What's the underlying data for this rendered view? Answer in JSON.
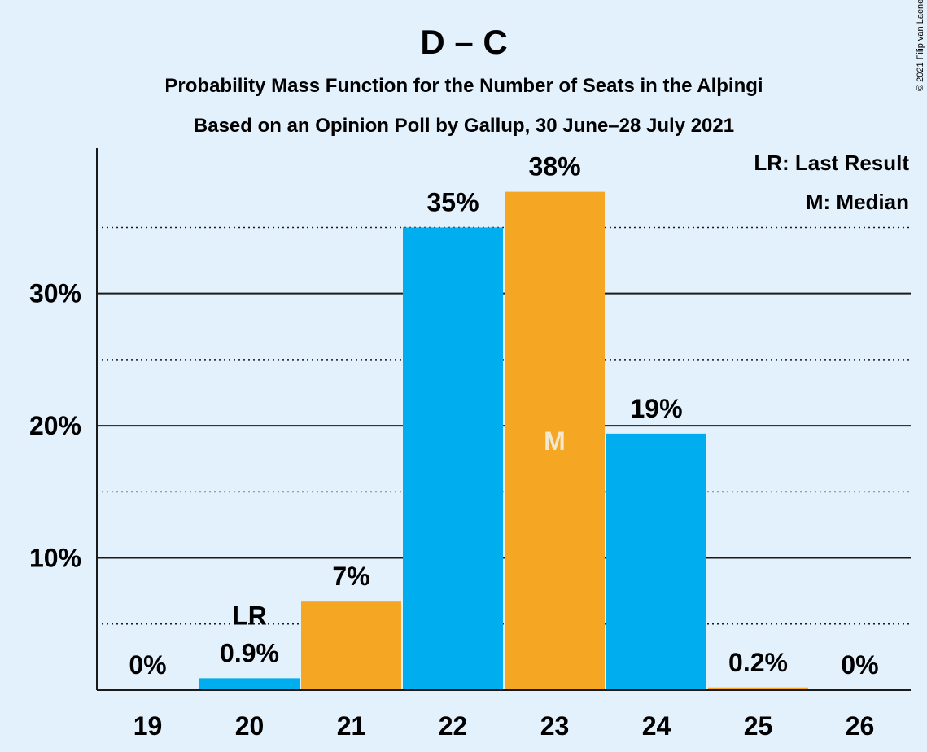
{
  "chart_data": {
    "type": "bar",
    "title": "D – C",
    "subtitle_line1": "Probability Mass Function for the Number of Seats in the Alþingi",
    "subtitle_line2": "Based on an Opinion Poll by Gallup, 30 June–28 July 2021",
    "copyright": "© 2021 Filip van Laenen",
    "legend": {
      "lr": "LR: Last Result",
      "median": "M: Median",
      "placement": "top-right"
    },
    "categories": [
      "19",
      "20",
      "21",
      "22",
      "23",
      "24",
      "25",
      "26"
    ],
    "values": [
      0,
      0.9,
      6.7,
      35.0,
      37.7,
      19.4,
      0.2,
      0
    ],
    "labels": [
      "0%",
      "0.9%",
      "7%",
      "35%",
      "38%",
      "19%",
      "0.2%",
      "0%"
    ],
    "bar_colors": [
      "#00AEEF",
      "#00AEEF",
      "#F5A623",
      "#00AEEF",
      "#F5A623",
      "#00AEEF",
      "#F5A623",
      "#00AEEF"
    ],
    "last_result_category": "20",
    "last_result_marker": "LR",
    "median_category": "23",
    "median_marker": "M",
    "ylim": [
      0,
      41
    ],
    "yticks": [
      {
        "value": 10,
        "label": "10%"
      },
      {
        "value": 20,
        "label": "20%"
      },
      {
        "value": 30,
        "label": "30%"
      }
    ],
    "minor_grid": [
      5,
      15,
      25,
      35
    ],
    "grid": true,
    "colors": {
      "background": "#E3F1FD",
      "blue": "#00AEEF",
      "orange": "#F5A623",
      "text": "#1a1a1a"
    }
  }
}
